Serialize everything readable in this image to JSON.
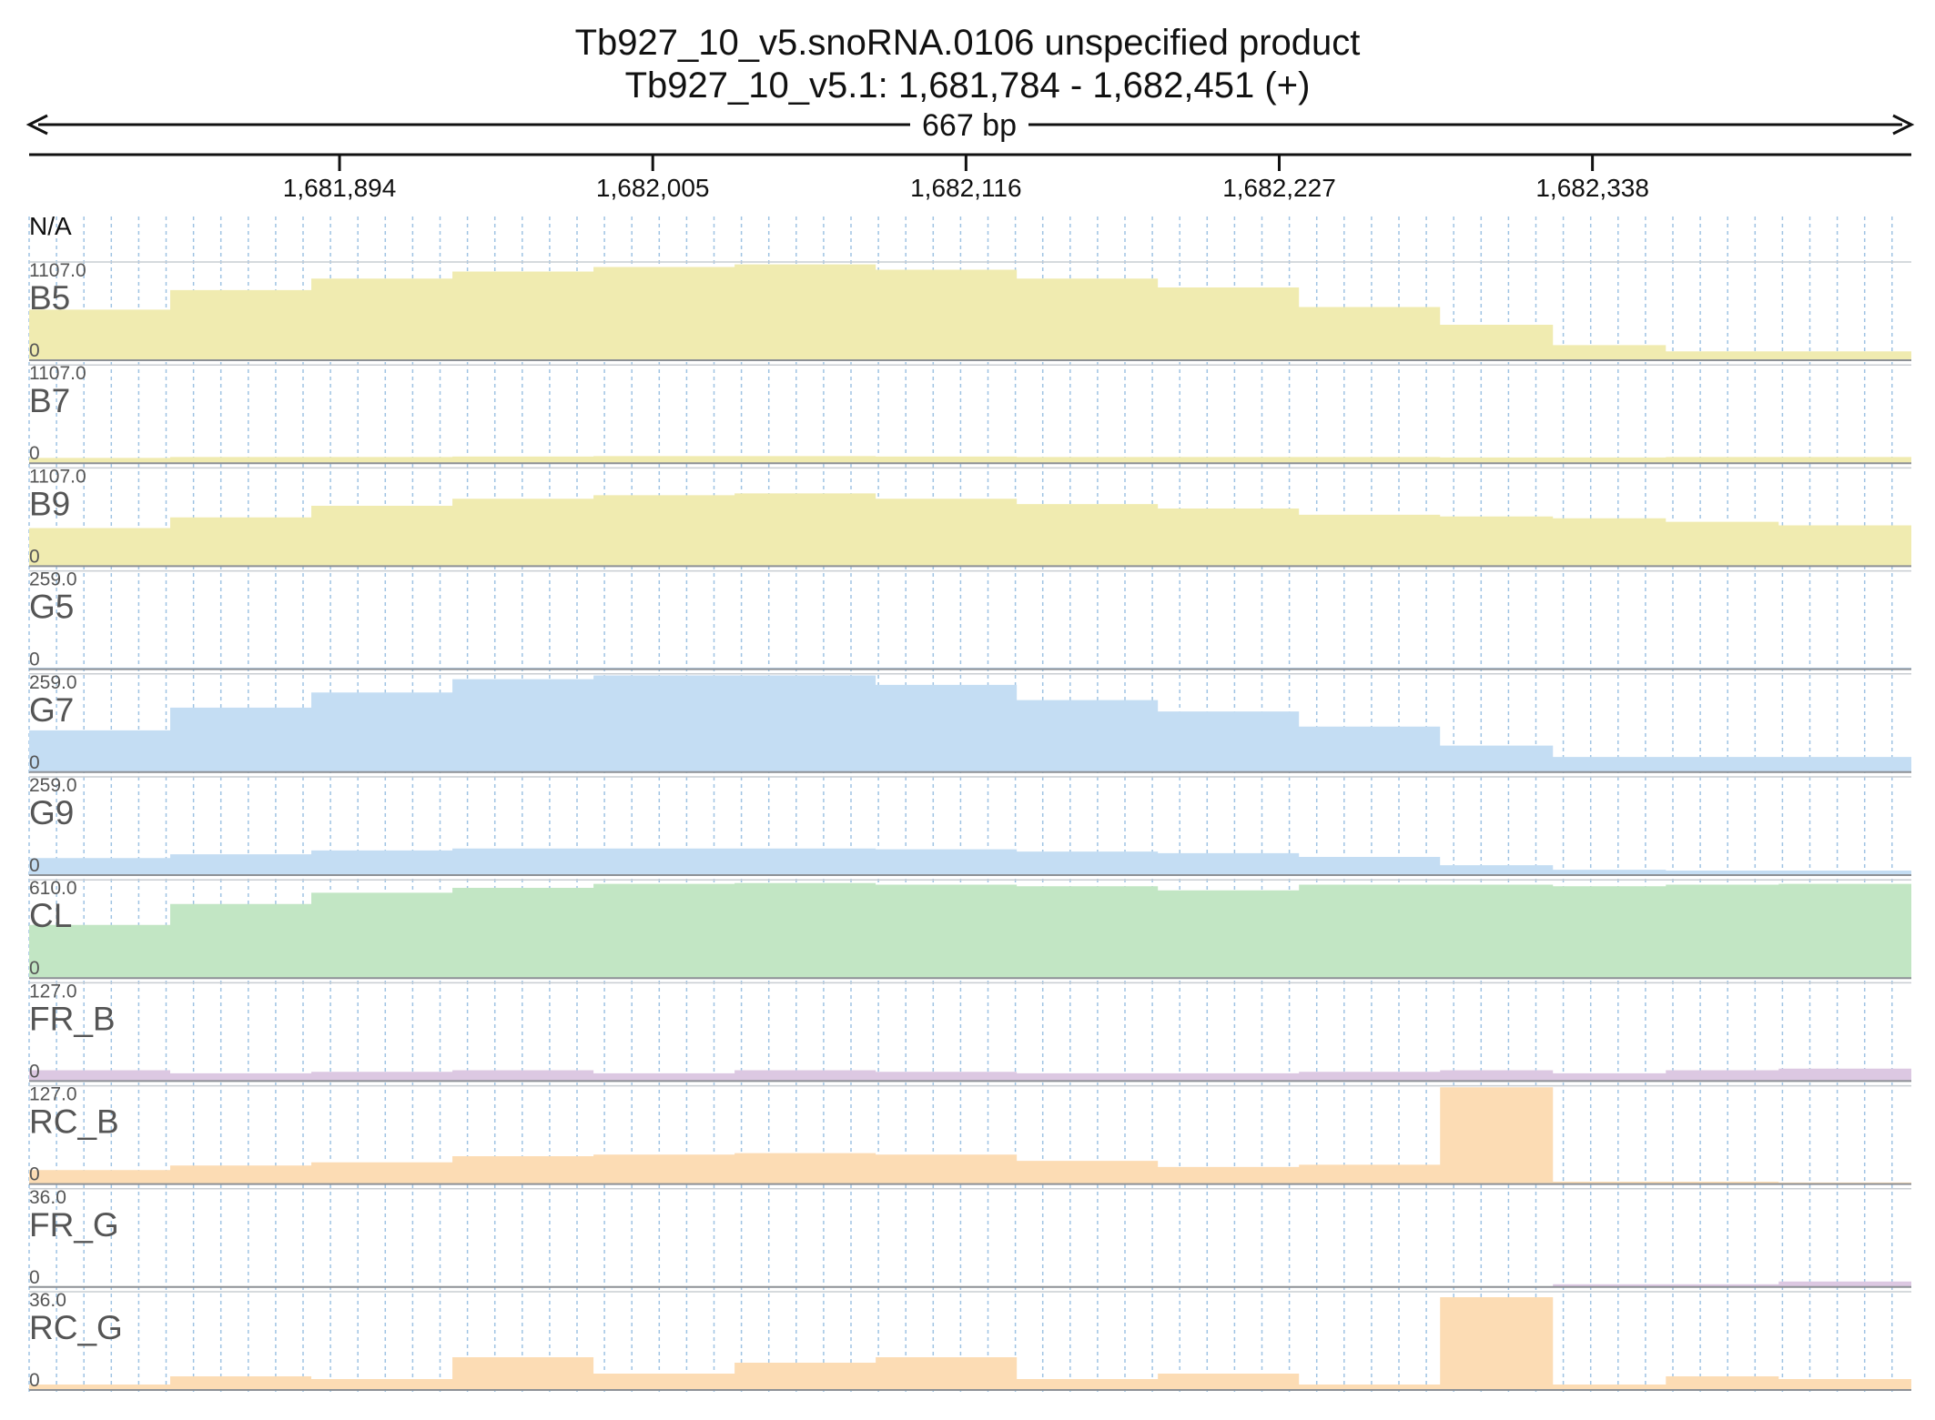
{
  "header": {
    "title": "Tb927_10_v5.snoRNA.0106  unspecified product",
    "location": "Tb927_10_v5.1: 1,681,784 - 1,682,451 (+)",
    "span_label": "667 bp",
    "na_label": "N/A"
  },
  "chart_data": {
    "type": "area",
    "title": "Tb927_10_v5.snoRNA.0106  unspecified product",
    "subtitle": "Tb927_10_v5.1: 1,681,784 - 1,682,451 (+)",
    "x_range": [
      1681784,
      1682451
    ],
    "x_ticks": [
      1681894,
      1682005,
      1682116,
      1682227,
      1682338
    ],
    "x_tick_labels": [
      "1,681,894",
      "1,682,005",
      "1,682,116",
      "1,682,227",
      "1,682,338"
    ],
    "grid": true,
    "x": [
      1681784,
      1681834,
      1681884,
      1681934,
      1681984,
      1682034,
      1682084,
      1682134,
      1682184,
      1682234,
      1682284,
      1682324,
      1682364,
      1682404,
      1682451
    ],
    "tracks": [
      {
        "name": "B5",
        "max": 1107.0,
        "max_label": "1107.0",
        "min_label": "0",
        "color": "#f0ebb0",
        "values": [
          570,
          790,
          920,
          1000,
          1050,
          1080,
          1020,
          920,
          820,
          600,
          400,
          170,
          100,
          100,
          100
        ]
      },
      {
        "name": "B7",
        "max": 1107.0,
        "max_label": "1107.0",
        "min_label": "0",
        "color": "#f0ebb0",
        "values": [
          60,
          70,
          70,
          75,
          80,
          80,
          75,
          70,
          70,
          70,
          65,
          65,
          70,
          70,
          70
        ]
      },
      {
        "name": "B9",
        "max": 1107.0,
        "max_label": "1107.0",
        "min_label": "0",
        "color": "#f0ebb0",
        "values": [
          430,
          550,
          680,
          760,
          800,
          820,
          760,
          700,
          650,
          580,
          560,
          540,
          500,
          460,
          430
        ]
      },
      {
        "name": "G5",
        "max": 259.0,
        "max_label": "259.0",
        "min_label": "0",
        "color": "#c4ddf3",
        "values": [
          4,
          4,
          4,
          4,
          4,
          4,
          4,
          4,
          4,
          4,
          4,
          4,
          4,
          4,
          4
        ]
      },
      {
        "name": "G7",
        "max": 259.0,
        "max_label": "259.0",
        "min_label": "0",
        "color": "#c4ddf3",
        "values": [
          110,
          170,
          210,
          245,
          255,
          255,
          230,
          190,
          160,
          120,
          70,
          40,
          40,
          40,
          40
        ]
      },
      {
        "name": "G9",
        "max": 259.0,
        "max_label": "259.0",
        "min_label": "0",
        "color": "#c4ddf3",
        "values": [
          45,
          55,
          65,
          70,
          70,
          70,
          68,
          62,
          58,
          48,
          26,
          14,
          12,
          12,
          12
        ]
      },
      {
        "name": "CL",
        "max": 610.0,
        "max_label": "610.0",
        "min_label": "0",
        "color": "#c2e6c4",
        "values": [
          330,
          460,
          530,
          560,
          585,
          590,
          580,
          570,
          545,
          580,
          580,
          570,
          580,
          585,
          580
        ]
      },
      {
        "name": "FR_B",
        "max": 127.0,
        "max_label": "127.0",
        "min_label": "0",
        "color": "#dcc8e2",
        "values": [
          14,
          10,
          12,
          14,
          10,
          14,
          12,
          10,
          10,
          12,
          14,
          10,
          14,
          16,
          10
        ]
      },
      {
        "name": "RC_B",
        "max": 127.0,
        "max_label": "127.0",
        "min_label": "0",
        "color": "#fcdcb4",
        "values": [
          18,
          24,
          28,
          36,
          38,
          40,
          38,
          30,
          22,
          25,
          125,
          3,
          3,
          2,
          2
        ]
      },
      {
        "name": "FR_G",
        "max": 36.0,
        "max_label": "36.0",
        "min_label": "0",
        "color": "#dcc8e2",
        "values": [
          0,
          0,
          0,
          0,
          0,
          0,
          0,
          0,
          0,
          0,
          0,
          1,
          1,
          2,
          2
        ]
      },
      {
        "name": "RC_G",
        "max": 36.0,
        "max_label": "36.0",
        "min_label": "0",
        "color": "#fcdcb4",
        "values": [
          2,
          5,
          4,
          12,
          6,
          10,
          12,
          4,
          6,
          2,
          34,
          2,
          5,
          4,
          1
        ]
      }
    ]
  }
}
